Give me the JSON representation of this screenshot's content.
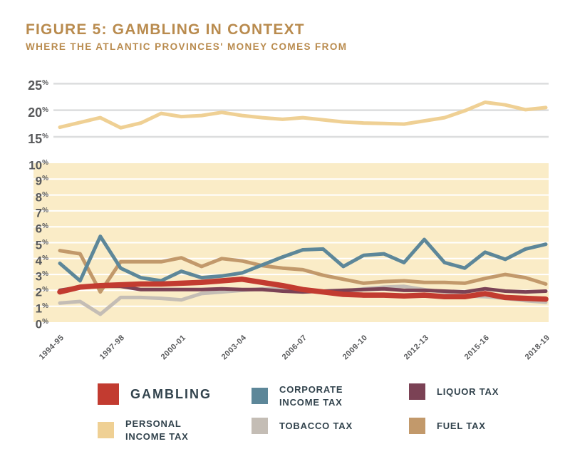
{
  "title": "FIGURE 5: GAMBLING IN CONTEXT",
  "subtitle": "WHERE THE ATLANTIC PROVINCES' MONEY COMES FROM",
  "colors": {
    "title": "#B98B4E",
    "axis_text": "#58595B",
    "legend_text": "#32434D",
    "panel_bg": "#FAECC7",
    "top_gridline": "#DCDDDE",
    "bottom_gridline": "#FFFFFF",
    "gambling": "#C23B30",
    "corporate_income_tax": "#5D8799",
    "liquor_tax": "#7B4255",
    "personal_income_tax": "#EFD094",
    "tobacco_tax": "#C4BDB5",
    "fuel_tax": "#C2996B"
  },
  "chart_data": {
    "type": "line",
    "x": [
      "1994-95",
      "1995-96",
      "1996-97",
      "1997-98",
      "1998-99",
      "1999-00",
      "2000-01",
      "2001-02",
      "2002-03",
      "2003-04",
      "2004-05",
      "2005-06",
      "2006-07",
      "2007-08",
      "2008-09",
      "2009-10",
      "2010-11",
      "2011-12",
      "2012-13",
      "2013-14",
      "2014-15",
      "2015-16",
      "2016-17",
      "2017-18",
      "2018-19"
    ],
    "x_tick_labels": [
      "1994-95",
      "1997-98",
      "2000-01",
      "2003-04",
      "2006-07",
      "2009-10",
      "2012-13",
      "2015-16",
      "2018-19"
    ],
    "top_panel": {
      "ylim": [
        15,
        25
      ],
      "ytick_labels": [
        "15%",
        "20%",
        "25%"
      ],
      "grid": true,
      "series": [
        {
          "name": "Personal Income Tax",
          "color_key": "personal_income_tax",
          "values": [
            16.8,
            17.7,
            18.6,
            16.7,
            17.6,
            19.4,
            18.8,
            19.0,
            19.6,
            19.0,
            18.6,
            18.3,
            18.6,
            18.2,
            17.8,
            17.6,
            17.5,
            17.4,
            18.0,
            18.6,
            19.9,
            21.5,
            21.0,
            20.1,
            20.5
          ]
        }
      ]
    },
    "bottom_panel": {
      "ylim": [
        0,
        10
      ],
      "ytick_labels": [
        "0%",
        "1%",
        "2%",
        "3%",
        "4%",
        "5%",
        "6%",
        "7%",
        "8%",
        "9%",
        "10%"
      ],
      "grid": true,
      "series": [
        {
          "name": "Tobacco Tax",
          "color_key": "tobacco_tax",
          "values": [
            1.2,
            1.3,
            0.5,
            1.55,
            1.55,
            1.5,
            1.4,
            1.8,
            1.9,
            2.0,
            2.1,
            2.1,
            2.05,
            1.95,
            1.95,
            2.1,
            2.2,
            2.25,
            2.05,
            1.9,
            1.65,
            1.6,
            1.5,
            1.35,
            1.25
          ]
        },
        {
          "name": "Fuel Tax",
          "color_key": "fuel_tax",
          "values": [
            4.5,
            4.3,
            1.9,
            3.8,
            3.8,
            3.8,
            4.05,
            3.5,
            4.0,
            3.85,
            3.55,
            3.4,
            3.3,
            2.95,
            2.7,
            2.45,
            2.55,
            2.6,
            2.5,
            2.5,
            2.45,
            2.75,
            3.0,
            2.8,
            2.4
          ]
        },
        {
          "name": "Corporate Income Tax",
          "color_key": "corporate_income_tax",
          "values": [
            3.7,
            2.6,
            5.4,
            3.4,
            2.8,
            2.6,
            3.2,
            2.8,
            2.9,
            3.1,
            3.6,
            4.1,
            4.55,
            4.6,
            3.5,
            4.2,
            4.3,
            3.75,
            5.2,
            3.75,
            3.4,
            4.4,
            3.95,
            4.6,
            4.9
          ]
        },
        {
          "name": "Liquor Tax",
          "color_key": "liquor_tax",
          "values": [
            2.0,
            2.2,
            2.25,
            2.25,
            2.05,
            2.05,
            2.05,
            2.05,
            2.1,
            2.05,
            2.05,
            1.95,
            1.9,
            1.95,
            2.0,
            2.05,
            2.1,
            2.0,
            2.0,
            1.95,
            1.9,
            2.1,
            1.95,
            1.9,
            1.95
          ]
        },
        {
          "name": "Gambling",
          "color_key": "gambling",
          "emphasis": true,
          "values": [
            1.9,
            2.2,
            2.3,
            2.35,
            2.4,
            2.4,
            2.45,
            2.5,
            2.6,
            2.7,
            2.5,
            2.3,
            2.05,
            1.9,
            1.75,
            1.7,
            1.7,
            1.65,
            1.7,
            1.6,
            1.6,
            1.8,
            1.55,
            1.5,
            1.45
          ]
        }
      ]
    },
    "legend_position": "bottom"
  },
  "legend": {
    "items": [
      {
        "label": "GAMBLING",
        "color_key": "gambling",
        "large": true
      },
      {
        "label": "CORPORATE\nINCOME TAX",
        "color_key": "corporate_income_tax"
      },
      {
        "label": "LIQUOR TAX",
        "color_key": "liquor_tax"
      },
      {
        "label": "PERSONAL\nINCOME TAX",
        "color_key": "personal_income_tax"
      },
      {
        "label": "TOBACCO TAX",
        "color_key": "tobacco_tax"
      },
      {
        "label": "FUEL TAX",
        "color_key": "fuel_tax"
      }
    ]
  }
}
